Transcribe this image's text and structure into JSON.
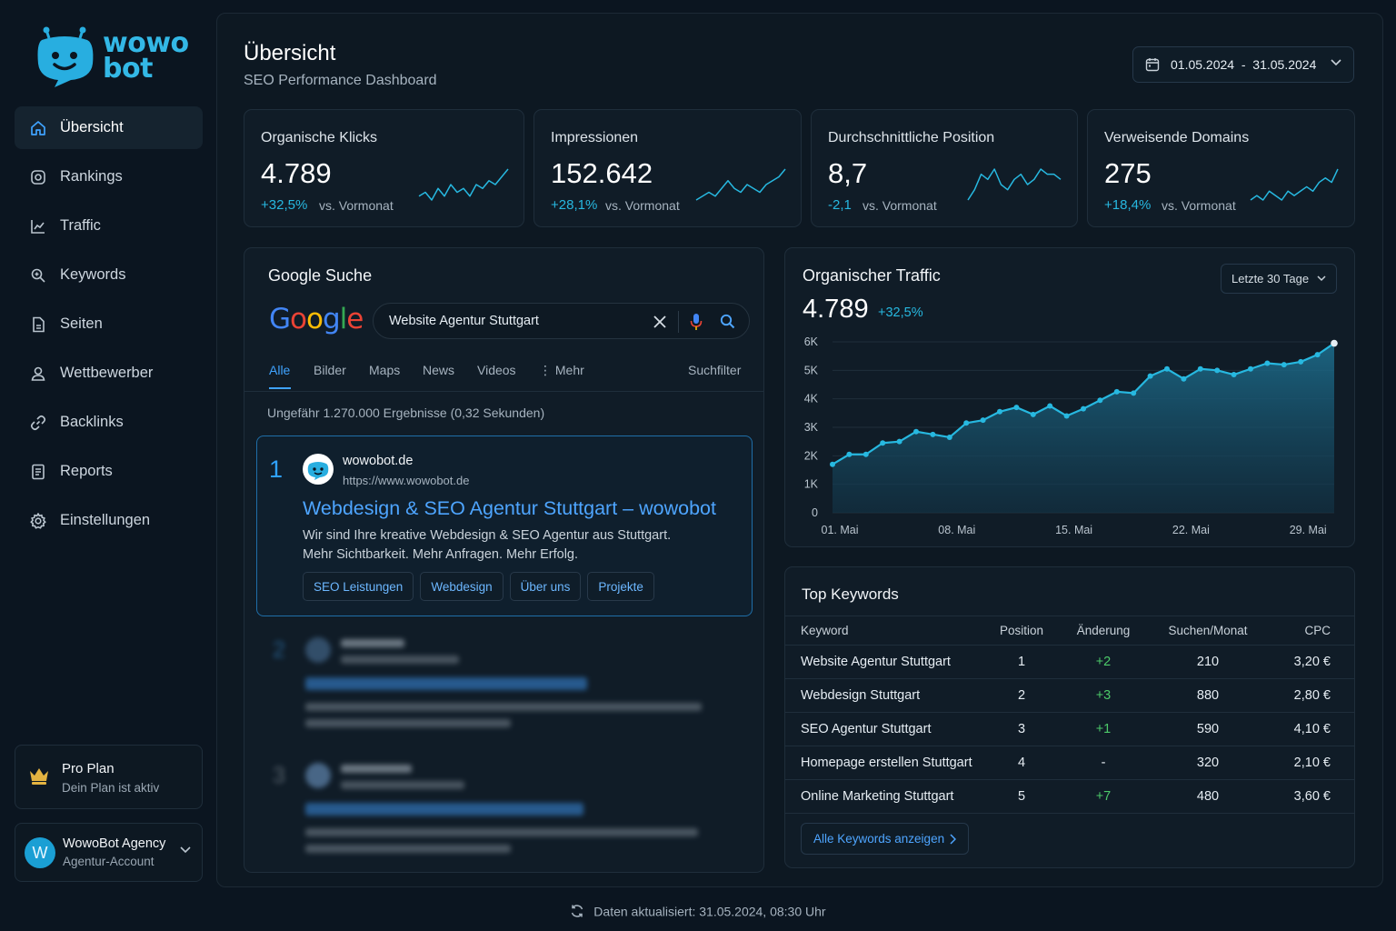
{
  "brand": {
    "line1": "wowo",
    "line2": "bot"
  },
  "sidebar": {
    "items": [
      {
        "label": "Übersicht",
        "icon": "home-icon",
        "active": true
      },
      {
        "label": "Rankings",
        "icon": "target-icon"
      },
      {
        "label": "Traffic",
        "icon": "chart-line-icon"
      },
      {
        "label": "Keywords",
        "icon": "keyword-search-icon"
      },
      {
        "label": "Seiten",
        "icon": "document-icon"
      },
      {
        "label": "Wettbewerber",
        "icon": "user-icon"
      },
      {
        "label": "Backlinks",
        "icon": "link-icon"
      },
      {
        "label": "Reports",
        "icon": "report-icon"
      },
      {
        "label": "Einstellungen",
        "icon": "gear-icon"
      }
    ],
    "plan": {
      "title": "Pro Plan",
      "subtitle": "Dein Plan ist aktiv"
    },
    "account": {
      "initial": "W",
      "name": "WowoBot Agency",
      "subtitle": "Agentur-Account"
    }
  },
  "header": {
    "title": "Übersicht",
    "subtitle": "SEO Performance Dashboard",
    "date_range": "01.05.2024  -  31.05.2024"
  },
  "kpis": [
    {
      "label": "Organische Klicks",
      "value": "4.789",
      "delta": "+32,5%",
      "vs": "vs. Vormonat"
    },
    {
      "label": "Impressionen",
      "value": "152.642",
      "delta": "+28,1%",
      "vs": "vs. Vormonat"
    },
    {
      "label": "Durchschnittliche Position",
      "value": "8,7",
      "delta": "-2,1",
      "vs": "vs. Vormonat"
    },
    {
      "label": "Verweisende Domains",
      "value": "275",
      "delta": "+18,4%",
      "vs": "vs. Vormonat"
    }
  ],
  "google": {
    "title": "Google Suche",
    "logo": "Google",
    "query": "Website Agentur Stuttgart",
    "tabs": [
      "Alle",
      "Bilder",
      "Maps",
      "News",
      "Videos",
      "⋮ Mehr"
    ],
    "filter": "Suchfilter",
    "results_info": "Ungefähr 1.270.000 Ergebnisse (0,32 Sekunden)",
    "result1": {
      "rank": "1",
      "site": "wowobot.de",
      "url": "https://www.wowobot.de",
      "title": "Webdesign & SEO Agentur Stuttgart – wowobot",
      "desc_line1": "Wir sind Ihre kreative Webdesign & SEO Agentur aus Stuttgart.",
      "desc_line2": "Mehr Sichtbarkeit. Mehr Anfragen. Mehr Erfolg.",
      "sitelinks": [
        "SEO Leistungen",
        "Webdesign",
        "Über uns",
        "Projekte"
      ]
    },
    "result2_rank": "2",
    "result3_rank": "3"
  },
  "traffic": {
    "title": "Organischer Traffic",
    "range_select": "Letzte 30 Tage",
    "value": "4.789",
    "delta": "+32,5%"
  },
  "chart_data": {
    "type": "area",
    "title": "Organischer Traffic",
    "x_tick_labels": [
      "01. Mai",
      "08. Mai",
      "15. Mai",
      "22. Mai",
      "29. Mai"
    ],
    "y_tick_labels": [
      "0",
      "1K",
      "2K",
      "3K",
      "4K",
      "5K",
      "6K"
    ],
    "ylim": [
      0,
      6000
    ],
    "x": [
      1,
      2,
      3,
      4,
      5,
      6,
      7,
      8,
      9,
      10,
      11,
      12,
      13,
      14,
      15,
      16,
      17,
      18,
      19,
      20,
      21,
      22,
      23,
      24,
      25,
      26,
      27,
      28,
      29,
      30,
      31
    ],
    "values": [
      1700,
      2050,
      2050,
      2450,
      2500,
      2850,
      2750,
      2650,
      3150,
      3250,
      3550,
      3700,
      3450,
      3750,
      3400,
      3650,
      3950,
      4250,
      4200,
      4800,
      5050,
      4700,
      5050,
      5000,
      4850,
      5050,
      5250,
      5200,
      5300,
      5550,
      5950
    ],
    "grid": true,
    "color": "#27b8e0"
  },
  "kpi_sparklines": [
    [
      4,
      5,
      3,
      6,
      4,
      7,
      5,
      6,
      4,
      7,
      6,
      8,
      7,
      9,
      11
    ],
    [
      3,
      4,
      5,
      4,
      6,
      8,
      6,
      5,
      7,
      6,
      5,
      7,
      8,
      9,
      11
    ],
    [
      3,
      5,
      8,
      7,
      9,
      6,
      5,
      7,
      8,
      6,
      7,
      9,
      8,
      8,
      7
    ],
    [
      4,
      5,
      4,
      6,
      5,
      4,
      6,
      5,
      6,
      7,
      6,
      8,
      9,
      8,
      11
    ]
  ],
  "keywords": {
    "title": "Top Keywords",
    "headers": [
      "Keyword",
      "Position",
      "Änderung",
      "Suchen/Monat",
      "CPC"
    ],
    "rows": [
      [
        "Website Agentur Stuttgart",
        "1",
        "+2",
        "210",
        "3,20 €"
      ],
      [
        "Webdesign Stuttgart",
        "2",
        "+3",
        "880",
        "2,80 €"
      ],
      [
        "SEO Agentur Stuttgart",
        "3",
        "+1",
        "590",
        "4,10 €"
      ],
      [
        "Homepage erstellen Stuttgart",
        "4",
        "-",
        "320",
        "2,10 €"
      ],
      [
        "Online Marketing Stuttgart",
        "5",
        "+7",
        "480",
        "3,60 €"
      ]
    ],
    "show_all": "Alle Keywords anzeigen"
  },
  "footer": {
    "updated": "Daten aktualisiert: 31.05.2024, 08:30 Uhr"
  },
  "colors": {
    "accent": "#27b8e0",
    "link": "#4ea5ff",
    "positive": "#4cc969",
    "background": "#0b1520"
  }
}
